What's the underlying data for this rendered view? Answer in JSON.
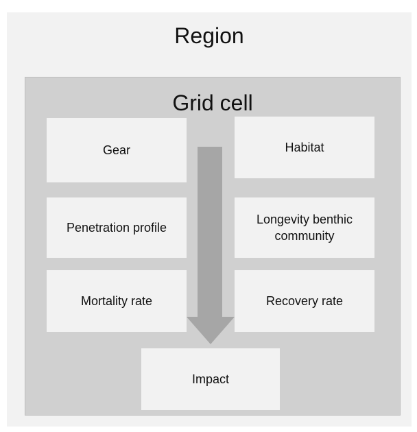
{
  "region": {
    "title": "Region"
  },
  "grid_cell": {
    "title": "Grid cell",
    "boxes": [
      "Gear",
      "Habitat",
      "Penetration profile",
      "Longevity benthic community",
      "Mortality rate",
      "Recovery rate"
    ],
    "output": "Impact"
  }
}
